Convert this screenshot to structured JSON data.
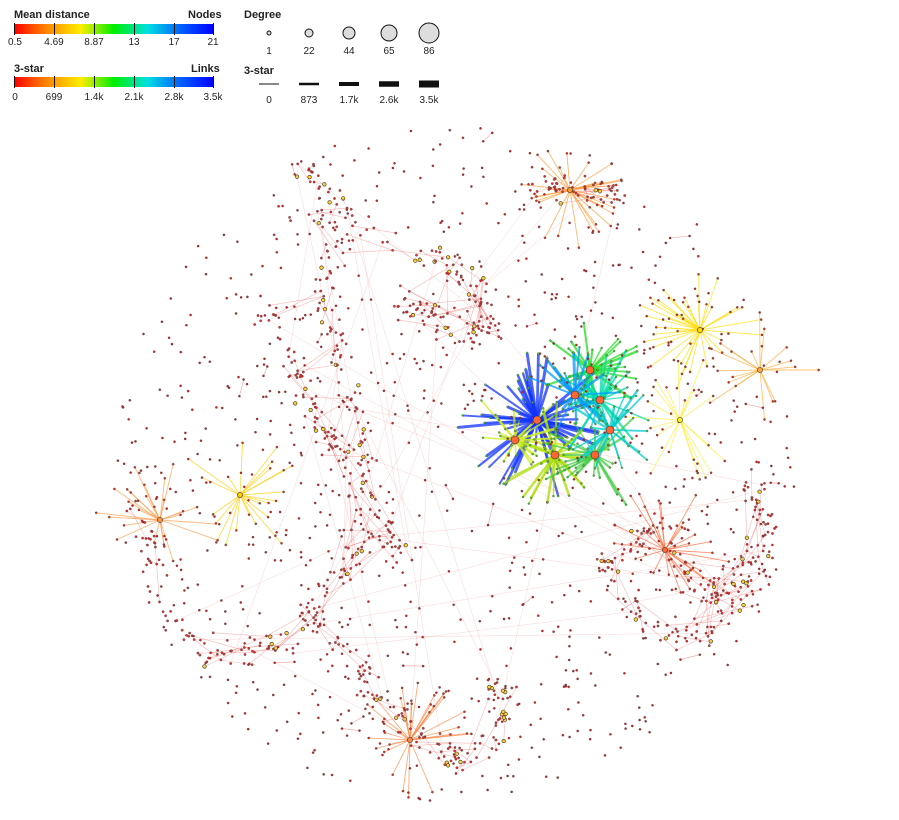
{
  "legend": {
    "node_color": {
      "title_left": "Mean distance",
      "title_right": "Nodes",
      "ticks": [
        "0.5",
        "4.69",
        "8.87",
        "13",
        "17",
        "21"
      ],
      "colors": [
        "#ff0000",
        "#ff8800",
        "#ffee00",
        "#00ee00",
        "#00e0e0",
        "#0000ff"
      ]
    },
    "link_color": {
      "title_left": "3-star",
      "title_right": "Links",
      "ticks": [
        "0",
        "699",
        "1.4k",
        "2.1k",
        "2.8k",
        "3.5k"
      ],
      "colors": [
        "#ff0000",
        "#ff8800",
        "#ffee00",
        "#00ee00",
        "#00e0e0",
        "#0000ff"
      ]
    },
    "node_size": {
      "title": "Degree",
      "ticks": [
        "1",
        "22",
        "44",
        "65",
        "86"
      ]
    },
    "link_width": {
      "title": "3-star",
      "ticks": [
        "0",
        "873",
        "1.7k",
        "2.6k",
        "3.5k"
      ]
    }
  }
}
